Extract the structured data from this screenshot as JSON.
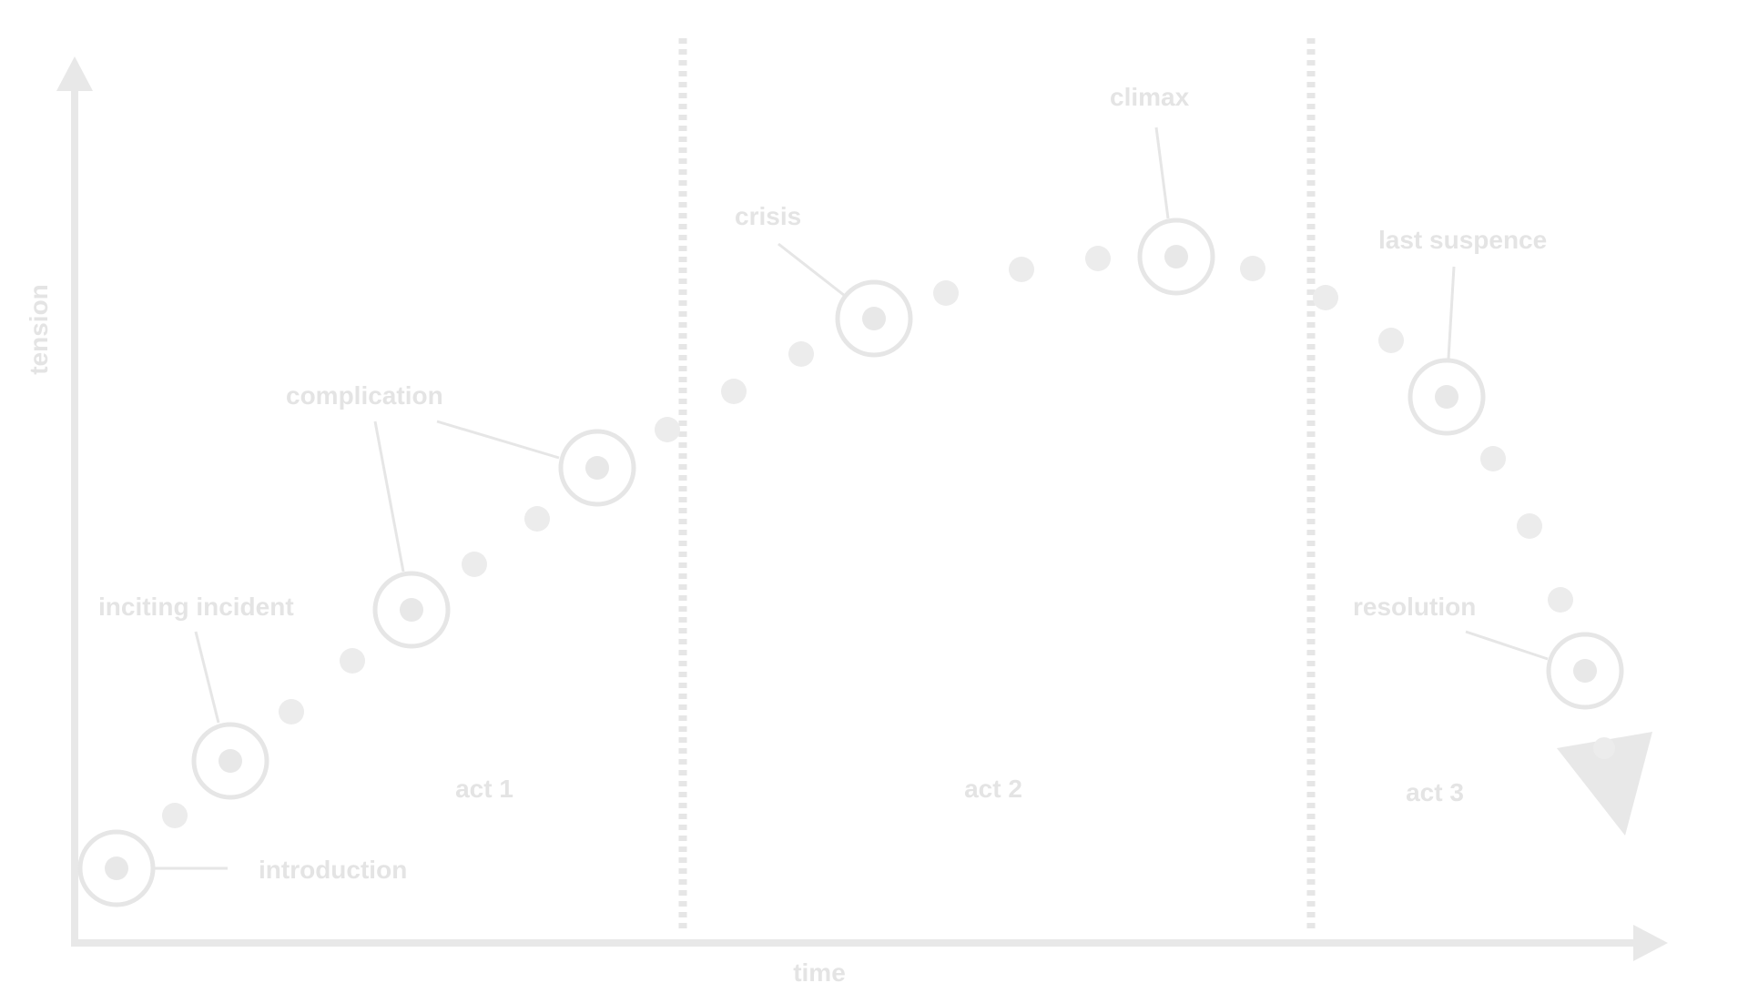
{
  "axes": {
    "x_label": "time",
    "y_label": "tension"
  },
  "acts": [
    {
      "label": "act 1"
    },
    {
      "label": "act 2"
    },
    {
      "label": "act 3"
    }
  ],
  "story_points": [
    {
      "label": "introduction"
    },
    {
      "label": "inciting incident"
    },
    {
      "label": "complication"
    },
    {
      "label": "crisis"
    },
    {
      "label": "climax"
    },
    {
      "label": "last suspence"
    },
    {
      "label": "resolution"
    }
  ],
  "colors": {
    "stroke": "#e6e6e6",
    "text": "#e4e4e4",
    "dot": "#ececec"
  }
}
